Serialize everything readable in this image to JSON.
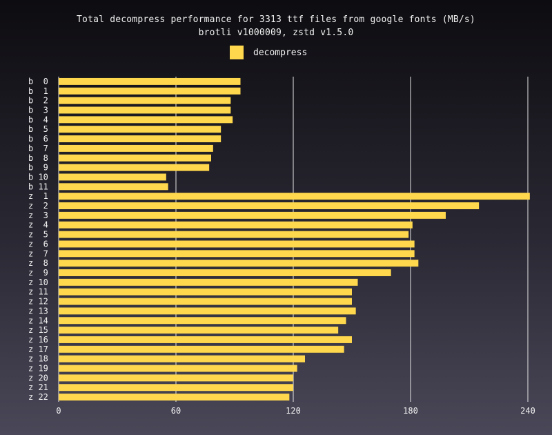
{
  "chart_data": {
    "type": "bar",
    "orientation": "horizontal",
    "title": "Total decompress performance for 3313 ttf files from google fonts (MB/s)",
    "subtitle": "brotli v1000009, zstd v1.5.0",
    "legend": {
      "placement": "top-center",
      "entries": [
        "decompress"
      ]
    },
    "bar_color": "#ffd84d",
    "grid": true,
    "xlim": [
      0,
      240
    ],
    "xticks": [
      "0",
      "60",
      "120",
      "180",
      "240"
    ],
    "categories": [
      "b  0",
      "b  1",
      "b  2",
      "b  3",
      "b  4",
      "b  5",
      "b  6",
      "b  7",
      "b  8",
      "b  9",
      "b 10",
      "b 11",
      "z  1",
      "z  2",
      "z  3",
      "z  4",
      "z  5",
      "z  6",
      "z  7",
      "z  8",
      "z  9",
      "z 10",
      "z 11",
      "z 12",
      "z 13",
      "z 14",
      "z 15",
      "z 16",
      "z 17",
      "z 18",
      "z 19",
      "z 20",
      "z 21",
      "z 22"
    ],
    "series": [
      {
        "name": "decompress",
        "values": [
          93,
          93,
          88,
          88,
          89,
          83,
          83,
          79,
          78,
          77,
          55,
          56,
          241,
          215,
          198,
          181,
          179,
          182,
          182,
          184,
          170,
          153,
          150,
          150,
          152,
          147,
          143,
          150,
          146,
          126,
          122,
          120,
          120,
          118
        ]
      }
    ]
  }
}
